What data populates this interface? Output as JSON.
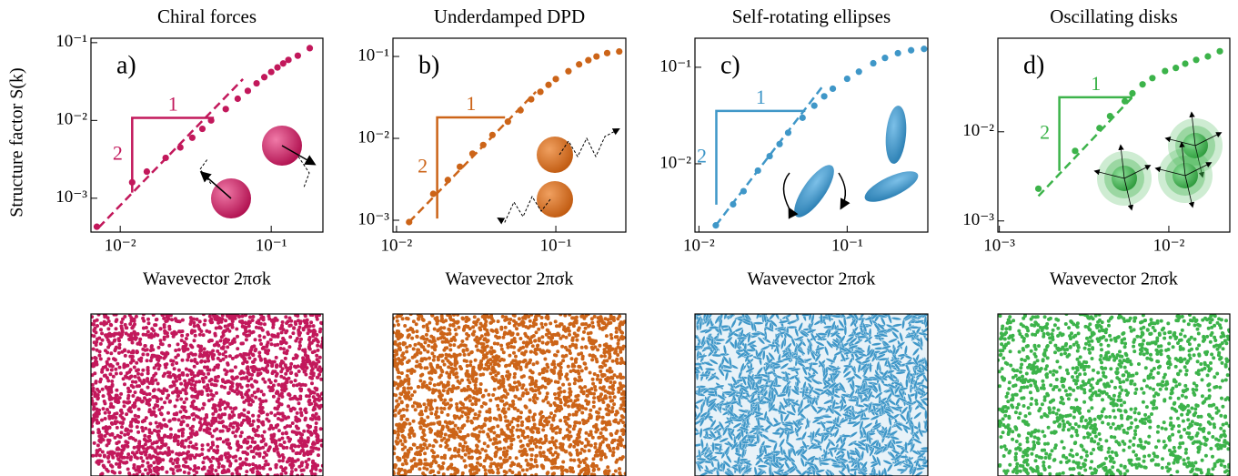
{
  "chart_data": [
    {
      "type": "scatter",
      "title": "Chiral forces",
      "panel": "a)",
      "x_label": "Wavevector 2πσk",
      "y_label": "Structure factor S(k)",
      "color": "#c2185b",
      "xscale": "log",
      "yscale": "log",
      "xlim": [
        0.0064,
        0.22
      ],
      "ylim": [
        0.000367,
        0.114
      ],
      "xticks": [
        {
          "value": 0.01,
          "label": "10⁻²"
        },
        {
          "value": 0.1,
          "label": "10⁻¹"
        }
      ],
      "yticks": [
        {
          "value": 0.001,
          "label": "10⁻³"
        },
        {
          "value": 0.01,
          "label": "10⁻²"
        },
        {
          "value": 0.1,
          "label": "10⁻¹"
        }
      ],
      "x": [
        0.007,
        0.012,
        0.015,
        0.02,
        0.025,
        0.03,
        0.035,
        0.04,
        0.05,
        0.06,
        0.07,
        0.08,
        0.09,
        0.1,
        0.11,
        0.12,
        0.13,
        0.15,
        0.18
      ],
      "y": [
        0.00043,
        0.0016,
        0.0022,
        0.0033,
        0.0045,
        0.006,
        0.0078,
        0.01,
        0.014,
        0.019,
        0.024,
        0.03,
        0.036,
        0.042,
        0.048,
        0.054,
        0.06,
        0.068,
        0.085
      ],
      "fit": {
        "x": [
          0.0072,
          0.065
        ],
        "y": [
          0.00042,
          0.034
        ]
      },
      "slope_triangle": {
        "x": [
          0.012,
          0.012,
          0.0417
        ],
        "y": [
          0.00118,
          0.0108,
          0.0108
        ]
      },
      "slope_labels": [
        "1",
        "2"
      ]
    },
    {
      "type": "scatter",
      "title": "Underdamped DPD",
      "panel": "b)",
      "x_label": "Wavevector 2πσk",
      "color": "#cc6418",
      "xscale": "log",
      "yscale": "log",
      "xlim": [
        0.0095,
        0.275
      ],
      "ylim": [
        0.000717,
        0.167
      ],
      "xticks": [
        {
          "value": 0.01,
          "label": "10⁻²"
        },
        {
          "value": 0.1,
          "label": "10⁻¹"
        }
      ],
      "yticks": [
        {
          "value": 0.001,
          "label": "10⁻³"
        },
        {
          "value": 0.01,
          "label": "10⁻²"
        },
        {
          "value": 0.1,
          "label": "10⁻¹"
        }
      ],
      "x": [
        0.012,
        0.017,
        0.021,
        0.025,
        0.03,
        0.035,
        0.04,
        0.05,
        0.06,
        0.07,
        0.08,
        0.09,
        0.1,
        0.12,
        0.14,
        0.16,
        0.18,
        0.21,
        0.25
      ],
      "y": [
        0.00095,
        0.0021,
        0.0031,
        0.0045,
        0.0065,
        0.0083,
        0.011,
        0.016,
        0.022,
        0.03,
        0.037,
        0.045,
        0.053,
        0.066,
        0.08,
        0.09,
        0.1,
        0.11,
        0.115
      ],
      "fit": {
        "x": [
          0.012,
          0.075
        ],
        "y": [
          0.00095,
          0.037
        ]
      },
      "slope_triangle": {
        "x": [
          0.018,
          0.018,
          0.048
        ],
        "y": [
          0.00105,
          0.018,
          0.018
        ]
      },
      "slope_labels": [
        "1",
        "2"
      ]
    },
    {
      "type": "scatter",
      "title": "Self-rotating ellipses",
      "panel": "c)",
      "x_label": "Wavevector 2πσk",
      "color": "#3f97c8",
      "xscale": "log",
      "yscale": "log",
      "xlim": [
        0.0094,
        0.35
      ],
      "ylim": [
        0.00196,
        0.2
      ],
      "xticks": [
        {
          "value": 0.01,
          "label": "10⁻²"
        },
        {
          "value": 0.1,
          "label": "10⁻¹"
        }
      ],
      "yticks": [
        {
          "value": 0.01,
          "label": "10⁻²"
        },
        {
          "value": 0.1,
          "label": "10⁻¹"
        }
      ],
      "x": [
        0.013,
        0.017,
        0.02,
        0.025,
        0.03,
        0.035,
        0.04,
        0.05,
        0.06,
        0.07,
        0.08,
        0.1,
        0.12,
        0.15,
        0.18,
        0.22,
        0.27,
        0.33
      ],
      "y": [
        0.0023,
        0.0038,
        0.0052,
        0.0085,
        0.012,
        0.016,
        0.021,
        0.03,
        0.04,
        0.05,
        0.06,
        0.076,
        0.09,
        0.11,
        0.125,
        0.14,
        0.15,
        0.155
      ],
      "fit": {
        "x": [
          0.013,
          0.07
        ],
        "y": [
          0.0023,
          0.0667
        ]
      },
      "slope_triangle": {
        "x": [
          0.0131,
          0.0131,
          0.0522
        ],
        "y": [
          0.00377,
          0.0353,
          0.0353
        ]
      },
      "slope_labels": [
        "1",
        "2"
      ]
    },
    {
      "type": "scatter",
      "title": "Oscillating disks",
      "panel": "d)",
      "x_label": "Wavevector 2πσk",
      "color": "#3cb34a",
      "xscale": "log",
      "yscale": "log",
      "xlim": [
        0.00098,
        0.0229
      ],
      "ylim": [
        0.00075,
        0.112
      ],
      "xticks": [
        {
          "value": 0.001,
          "label": "10⁻³"
        },
        {
          "value": 0.01,
          "label": "10⁻²"
        }
      ],
      "yticks": [
        {
          "value": 0.001,
          "label": "10⁻³"
        },
        {
          "value": 0.01,
          "label": "10⁻²"
        }
      ],
      "x": [
        0.0017,
        0.0028,
        0.0039,
        0.0045,
        0.0055,
        0.0061,
        0.007,
        0.008,
        0.0095,
        0.011,
        0.0125,
        0.0145,
        0.017,
        0.02
      ],
      "y": [
        0.0023,
        0.0061,
        0.011,
        0.015,
        0.022,
        0.027,
        0.034,
        0.04,
        0.048,
        0.052,
        0.058,
        0.064,
        0.07,
        0.08
      ],
      "fit": {
        "x": [
          0.0017,
          0.0062
        ],
        "y": [
          0.0019,
          0.0253
        ]
      },
      "slope_triangle": {
        "x": [
          0.00226,
          0.00226,
          0.0061
        ],
        "y": [
          0.00364,
          0.0244,
          0.0244
        ]
      },
      "slope_labels": [
        "1",
        "2"
      ]
    }
  ]
}
